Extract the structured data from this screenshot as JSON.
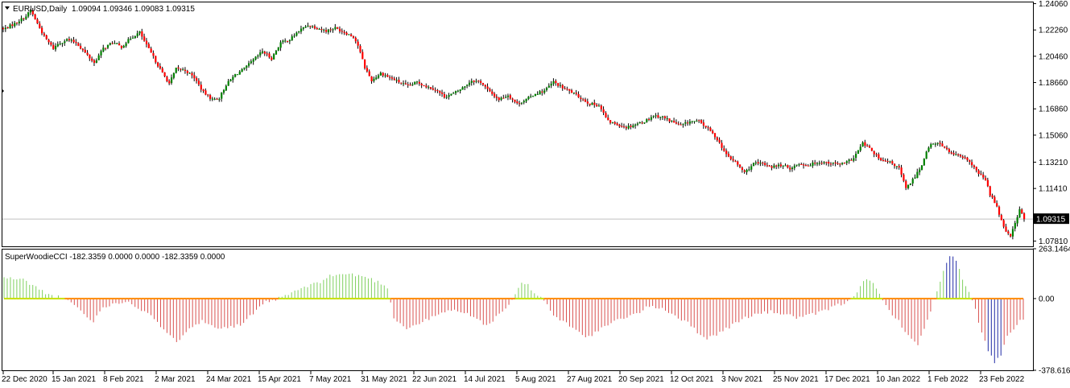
{
  "window": {
    "symbol_title": "EURUSD,Daily",
    "ohlc": "1.09094 1.09346 1.09083 1.09315",
    "indicator_header": "SuperWoodieCCI -182.3359 0.0000 0.0000 -182.3359 0.0000"
  },
  "colors": {
    "bull": "#008000",
    "bear": "#ff0000",
    "cci_positive": "#7fd05f",
    "cci_positive_strong": "#1f2aa5",
    "cci_negative": "#d9504f",
    "cci_negative_strong": "#1f2aa5",
    "zero_line_pos": "#c8e000",
    "zero_line_neg": "#ff8c00",
    "grid": "#c0c0c0",
    "price_tag_bg": "#000000",
    "price_tag_fg": "#ffffff"
  },
  "icons": {
    "dropdown": "triangle-down-icon"
  },
  "chart_data": [
    {
      "type": "candlestick",
      "title": "EURUSD,Daily",
      "y_ticks": [
        "1.24060",
        "1.22260",
        "1.20460",
        "1.18660",
        "1.16860",
        "1.15060",
        "1.13210",
        "1.11410",
        "1.07810"
      ],
      "ylim": [
        1.0745,
        1.242
      ],
      "current_price": "1.09315",
      "x_ticks": [
        "22 Dec 2020",
        "15 Jan 2021",
        "8 Feb 2021",
        "2 Mar 2021",
        "24 Mar 2021",
        "15 Apr 2021",
        "7 May 2021",
        "31 May 2021",
        "22 Jun 2021",
        "14 Jul 2021",
        "5 Aug 2021",
        "27 Aug 2021",
        "20 Sep 2021",
        "12 Oct 2021",
        "3 Nov 2021",
        "25 Nov 2021",
        "17 Dec 2021",
        "10 Jan 2022",
        "1 Feb 2022",
        "23 Feb 2022"
      ],
      "close_anchors": [
        [
          0,
          1.223
        ],
        [
          5,
          1.227
        ],
        [
          10,
          1.232
        ],
        [
          12,
          1.236
        ],
        [
          15,
          1.227
        ],
        [
          18,
          1.218
        ],
        [
          22,
          1.21
        ],
        [
          24,
          1.213
        ],
        [
          28,
          1.216
        ],
        [
          32,
          1.214
        ],
        [
          36,
          1.207
        ],
        [
          40,
          1.2
        ],
        [
          44,
          1.21
        ],
        [
          48,
          1.214
        ],
        [
          52,
          1.211
        ],
        [
          56,
          1.217
        ],
        [
          60,
          1.221
        ],
        [
          63,
          1.212
        ],
        [
          66,
          1.204
        ],
        [
          70,
          1.193
        ],
        [
          73,
          1.186
        ],
        [
          76,
          1.196
        ],
        [
          80,
          1.195
        ],
        [
          84,
          1.19
        ],
        [
          88,
          1.18
        ],
        [
          92,
          1.175
        ],
        [
          95,
          1.176
        ],
        [
          98,
          1.185
        ],
        [
          102,
          1.192
        ],
        [
          106,
          1.196
        ],
        [
          110,
          1.202
        ],
        [
          114,
          1.208
        ],
        [
          118,
          1.203
        ],
        [
          122,
          1.214
        ],
        [
          126,
          1.216
        ],
        [
          130,
          1.222
        ],
        [
          134,
          1.226
        ],
        [
          138,
          1.224
        ],
        [
          142,
          1.222
        ],
        [
          146,
          1.224
        ],
        [
          150,
          1.221
        ],
        [
          154,
          1.218
        ],
        [
          156,
          1.212
        ],
        [
          159,
          1.197
        ],
        [
          162,
          1.188
        ],
        [
          166,
          1.193
        ],
        [
          170,
          1.19
        ],
        [
          174,
          1.187
        ],
        [
          178,
          1.184
        ],
        [
          182,
          1.187
        ],
        [
          186,
          1.184
        ],
        [
          190,
          1.182
        ],
        [
          194,
          1.177
        ],
        [
          198,
          1.179
        ],
        [
          202,
          1.183
        ],
        [
          206,
          1.188
        ],
        [
          210,
          1.187
        ],
        [
          214,
          1.18
        ],
        [
          218,
          1.175
        ],
        [
          222,
          1.178
        ],
        [
          226,
          1.172
        ],
        [
          230,
          1.175
        ],
        [
          234,
          1.179
        ],
        [
          238,
          1.181
        ],
        [
          242,
          1.187
        ],
        [
          246,
          1.183
        ],
        [
          250,
          1.18
        ],
        [
          254,
          1.176
        ],
        [
          258,
          1.172
        ],
        [
          262,
          1.171
        ],
        [
          266,
          1.16
        ],
        [
          270,
          1.158
        ],
        [
          274,
          1.156
        ],
        [
          278,
          1.158
        ],
        [
          282,
          1.16
        ],
        [
          286,
          1.164
        ],
        [
          290,
          1.163
        ],
        [
          294,
          1.16
        ],
        [
          298,
          1.157
        ],
        [
          302,
          1.16
        ],
        [
          306,
          1.16
        ],
        [
          310,
          1.155
        ],
        [
          314,
          1.148
        ],
        [
          318,
          1.137
        ],
        [
          322,
          1.132
        ],
        [
          326,
          1.125
        ],
        [
          330,
          1.131
        ],
        [
          334,
          1.131
        ],
        [
          338,
          1.129
        ],
        [
          342,
          1.13
        ],
        [
          346,
          1.128
        ],
        [
          350,
          1.131
        ],
        [
          354,
          1.13
        ],
        [
          358,
          1.132
        ],
        [
          362,
          1.132
        ],
        [
          366,
          1.131
        ],
        [
          370,
          1.131
        ],
        [
          374,
          1.135
        ],
        [
          378,
          1.145
        ],
        [
          382,
          1.14
        ],
        [
          386,
          1.133
        ],
        [
          390,
          1.132
        ],
        [
          394,
          1.128
        ],
        [
          397,
          1.114
        ],
        [
          400,
          1.12
        ],
        [
          404,
          1.13
        ],
        [
          406,
          1.14
        ],
        [
          408,
          1.144
        ],
        [
          412,
          1.145
        ],
        [
          416,
          1.139
        ],
        [
          420,
          1.136
        ],
        [
          424,
          1.134
        ],
        [
          428,
          1.126
        ],
        [
          432,
          1.12
        ],
        [
          434,
          1.11
        ],
        [
          437,
          1.102
        ],
        [
          439,
          1.092
        ],
        [
          441,
          1.085
        ],
        [
          443,
          1.082
        ],
        [
          445,
          1.09
        ],
        [
          447,
          1.1
        ],
        [
          449,
          1.093
        ]
      ]
    },
    {
      "type": "histogram",
      "title": "SuperWoodieCCI",
      "y_ticks": [
        "263.1464",
        "0.00",
        "-378.6167"
      ],
      "ylim": [
        -378.6167,
        263.1464
      ],
      "cci_anchors": [
        [
          0,
          110
        ],
        [
          6,
          100
        ],
        [
          10,
          60
        ],
        [
          14,
          20
        ],
        [
          18,
          5
        ],
        [
          22,
          -30
        ],
        [
          26,
          -100
        ],
        [
          28,
          -120
        ],
        [
          31,
          -40
        ],
        [
          35,
          -30
        ],
        [
          38,
          -10
        ],
        [
          42,
          -50
        ],
        [
          46,
          -80
        ],
        [
          50,
          -170
        ],
        [
          54,
          -230
        ],
        [
          58,
          -150
        ],
        [
          62,
          -120
        ],
        [
          66,
          -150
        ],
        [
          70,
          -150
        ],
        [
          74,
          -140
        ],
        [
          78,
          -80
        ],
        [
          82,
          -20
        ],
        [
          86,
          0
        ],
        [
          90,
          30
        ],
        [
          94,
          60
        ],
        [
          98,
          80
        ],
        [
          102,
          120
        ],
        [
          106,
          130
        ],
        [
          110,
          125
        ],
        [
          114,
          110
        ],
        [
          118,
          80
        ],
        [
          120,
          60
        ],
        [
          122,
          -100
        ],
        [
          126,
          -160
        ],
        [
          130,
          -130
        ],
        [
          134,
          -100
        ],
        [
          138,
          -70
        ],
        [
          142,
          -60
        ],
        [
          146,
          -90
        ],
        [
          150,
          -130
        ],
        [
          152,
          -140
        ],
        [
          154,
          -90
        ],
        [
          158,
          -40
        ],
        [
          160,
          20
        ],
        [
          162,
          80
        ],
        [
          164,
          70
        ],
        [
          166,
          30
        ],
        [
          168,
          10
        ],
        [
          170,
          -30
        ],
        [
          172,
          -90
        ],
        [
          176,
          -130
        ],
        [
          180,
          -170
        ],
        [
          182,
          -210
        ],
        [
          186,
          -170
        ],
        [
          190,
          -130
        ],
        [
          194,
          -100
        ],
        [
          198,
          -80
        ],
        [
          202,
          -40
        ],
        [
          206,
          -50
        ],
        [
          210,
          -90
        ],
        [
          214,
          -130
        ],
        [
          218,
          -190
        ],
        [
          220,
          -210
        ],
        [
          224,
          -180
        ],
        [
          228,
          -140
        ],
        [
          232,
          -100
        ],
        [
          236,
          -80
        ],
        [
          240,
          -70
        ],
        [
          244,
          -80
        ],
        [
          248,
          -100
        ],
        [
          252,
          -90
        ],
        [
          256,
          -70
        ],
        [
          260,
          -40
        ],
        [
          264,
          -20
        ],
        [
          267,
          40
        ],
        [
          269,
          100
        ],
        [
          272,
          80
        ],
        [
          274,
          20
        ],
        [
          276,
          -40
        ],
        [
          280,
          -120
        ],
        [
          284,
          -220
        ],
        [
          286,
          -240
        ],
        [
          288,
          -160
        ],
        [
          290,
          -60
        ],
        [
          292,
          40
        ],
        [
          294,
          140
        ],
        [
          296,
          230
        ],
        [
          298,
          200
        ],
        [
          300,
          100
        ],
        [
          302,
          30
        ],
        [
          304,
          -60
        ],
        [
          306,
          -180
        ],
        [
          308,
          -270
        ],
        [
          310,
          -340
        ],
        [
          312,
          -300
        ],
        [
          314,
          -200
        ],
        [
          316,
          -160
        ],
        [
          318,
          -120
        ],
        [
          319,
          -120
        ]
      ]
    }
  ]
}
